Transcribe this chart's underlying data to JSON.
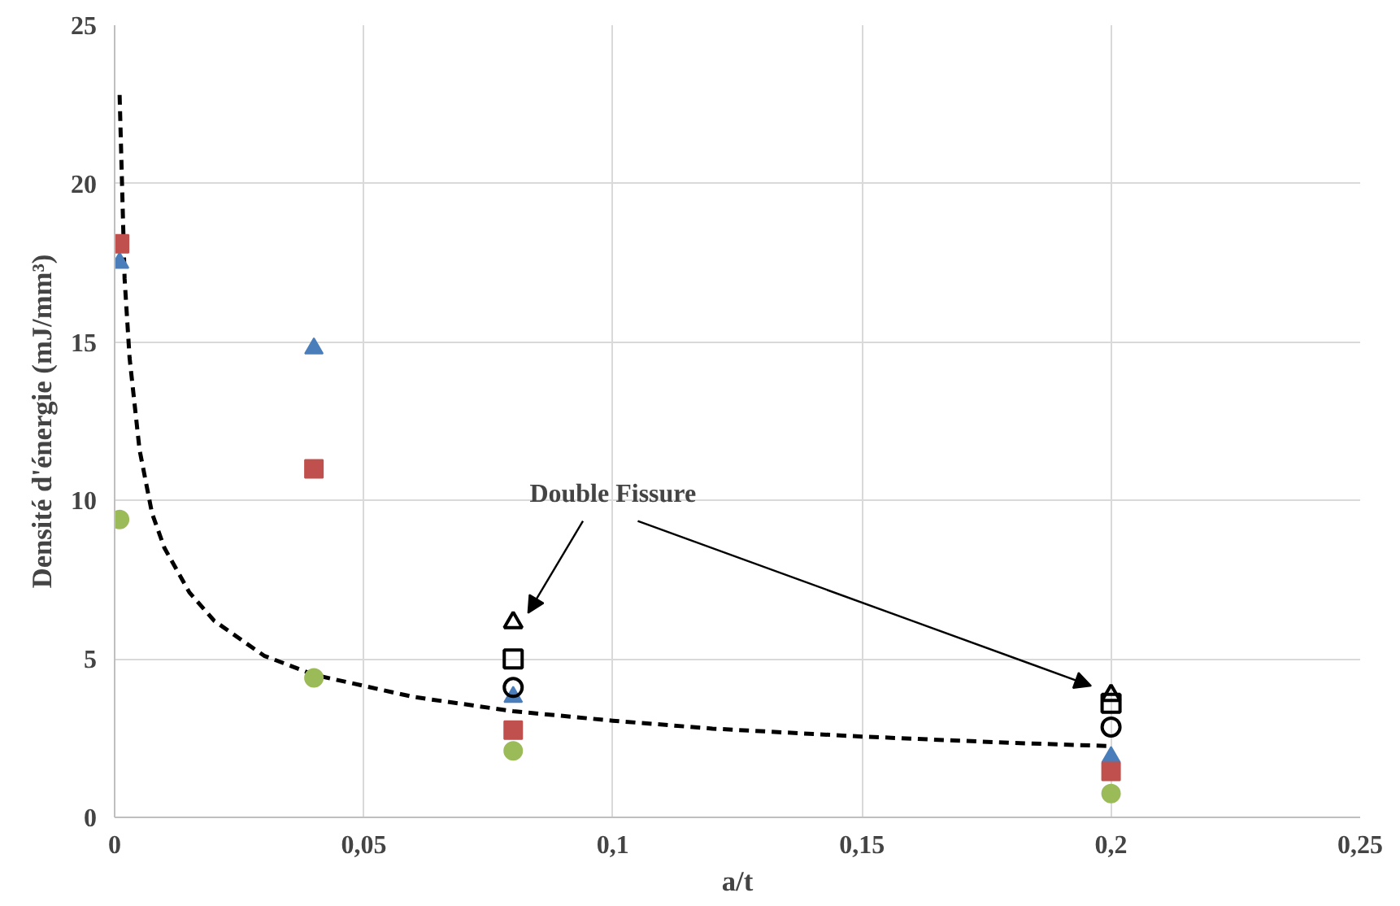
{
  "chart_data": {
    "type": "scatter",
    "xlabel": "a/t",
    "ylabel": "Densité d'énergie (mJ/mm³)",
    "xlim": [
      0,
      0.25
    ],
    "ylim": [
      0,
      25
    ],
    "xticks": [
      0,
      {
        "value": 0.05,
        "label": "0,05"
      },
      {
        "value": 0.1,
        "label": "0,1"
      },
      {
        "value": 0.15,
        "label": "0,15"
      },
      {
        "value": 0.2,
        "label": "0,2"
      },
      {
        "value": 0.25,
        "label": "0,25"
      }
    ],
    "yticks": [
      0,
      5,
      10,
      15,
      20,
      25
    ],
    "grid": true,
    "annotations": [
      "Double Fissure"
    ],
    "series": [
      {
        "type": "line",
        "color": "#000000",
        "line_style": "dashed",
        "marker": "none",
        "x": [
          0.001,
          0.002,
          0.003,
          0.005,
          0.0075,
          0.01,
          0.015,
          0.02,
          0.03,
          0.04,
          0.06,
          0.08,
          0.1,
          0.12,
          0.15,
          0.18,
          0.2
        ],
        "values": [
          22.8,
          17.0,
          14.5,
          11.6,
          9.6,
          8.5,
          7.1,
          6.2,
          5.1,
          4.5,
          3.8,
          3.35,
          3.05,
          2.8,
          2.55,
          2.35,
          2.25
        ]
      },
      {
        "color": "#4a7ebb",
        "marker": "triangle",
        "x": [
          0.001,
          0.04,
          0.08,
          0.2
        ],
        "values": [
          17.5,
          14.8,
          3.8,
          1.9
        ]
      },
      {
        "color": "#c0504d",
        "marker": "square",
        "x": [
          0.001,
          0.04,
          0.08,
          0.2
        ],
        "values": [
          18.1,
          11.0,
          2.75,
          1.45
        ]
      },
      {
        "color": "#9bbb59",
        "marker": "circle",
        "x": [
          0.001,
          0.04,
          0.08,
          0.2
        ],
        "values": [
          9.4,
          4.4,
          2.1,
          0.75
        ]
      },
      {
        "color": "#000000",
        "marker": "triangle_open",
        "x": [
          0.08,
          0.2
        ],
        "values": [
          6.15,
          3.85
        ]
      },
      {
        "color": "#000000",
        "marker": "square_open",
        "x": [
          0.08,
          0.2
        ],
        "values": [
          5.0,
          3.6
        ]
      },
      {
        "color": "#000000",
        "marker": "circle_open",
        "x": [
          0.08,
          0.2
        ],
        "values": [
          4.1,
          2.85
        ]
      }
    ]
  }
}
